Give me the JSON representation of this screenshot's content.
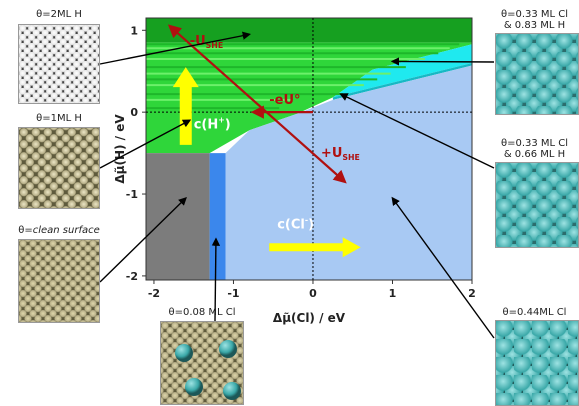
{
  "chart_data": {
    "type": "area",
    "xlabel": "Δμ̃(Cl) / eV",
    "ylabel": "Δμ̃(H) / eV",
    "xlim": [
      -2.1,
      2.0
    ],
    "ylim": [
      -2.05,
      1.15
    ],
    "xticks": [
      "-2",
      "-1",
      "0",
      "1",
      "2"
    ],
    "yticks": [
      "1",
      "0",
      "-1",
      "-2"
    ],
    "xtick_values": [
      -2,
      -1,
      0,
      1,
      2
    ],
    "ytick_values": [
      1,
      0,
      -1,
      -2
    ],
    "grid": false,
    "dashed_reference_lines": {
      "x": 0,
      "y": 0
    },
    "regions": [
      {
        "name": "θ=2ML H",
        "color": "#16a020",
        "polygon": [
          [
            -2.1,
            1.15
          ],
          [
            2.0,
            1.15
          ],
          [
            2.0,
            0.85
          ],
          [
            -2.1,
            0.85
          ]
        ]
      },
      {
        "name": "θ=1ML H",
        "color": "#2fd63a",
        "polygon": [
          [
            -2.1,
            0.85
          ],
          [
            2.0,
            0.85
          ],
          [
            2.0,
            0.83
          ],
          [
            0.75,
            0.52
          ],
          [
            0.25,
            0.18
          ],
          [
            -0.2,
            -0.02
          ],
          [
            -0.8,
            -0.22
          ],
          [
            -1.3,
            -0.5
          ],
          [
            -2.1,
            -0.5
          ]
        ]
      },
      {
        "name": "θ=0.33 ML Cl & 0.83 ML H",
        "color": "#1fe9ef",
        "polygon": [
          [
            2.0,
            0.83
          ],
          [
            2.0,
            0.6
          ],
          [
            0.25,
            0.18
          ],
          [
            0.75,
            0.52
          ]
        ]
      },
      {
        "name": "θ=0.33 ML Cl & 0.66 ML H",
        "color": "#17b9c4",
        "polygon": [
          [
            2.0,
            0.6
          ],
          [
            2.0,
            0.57
          ],
          [
            0.25,
            0.15
          ],
          [
            0.25,
            0.18
          ]
        ]
      },
      {
        "name": "θ=clean surface",
        "color": "#7c7c7c",
        "polygon": [
          [
            -2.1,
            -0.5
          ],
          [
            -1.3,
            -0.5
          ],
          [
            -1.3,
            -2.05
          ],
          [
            -2.1,
            -2.05
          ]
        ]
      },
      {
        "name": "θ=0.08 ML Cl",
        "color": "#3b87ec",
        "polygon": [
          [
            -1.3,
            -0.5
          ],
          [
            -1.1,
            -0.5
          ],
          [
            -1.1,
            -2.05
          ],
          [
            -1.3,
            -2.05
          ]
        ]
      },
      {
        "name": "θ=0.44ML Cl",
        "color": "#a8c9f3",
        "polygon": [
          [
            -1.1,
            -0.5
          ],
          [
            -0.8,
            -0.22
          ],
          [
            -0.2,
            -0.02
          ],
          [
            0.25,
            0.15
          ],
          [
            2.0,
            0.57
          ],
          [
            2.0,
            -2.05
          ],
          [
            -1.1,
            -2.05
          ]
        ]
      }
    ],
    "h_stripes_y": [
      0.83,
      0.78,
      0.72,
      0.65,
      0.55,
      0.47,
      0.4,
      0.33,
      0.22,
      0.15,
      0.05
    ],
    "arrows": [
      {
        "label": "-U_SHE",
        "color": "#b01010",
        "from": [
          0.4,
          -0.85
        ],
        "to": [
          -1.8,
          1.05
        ]
      },
      {
        "label": "+U_SHE",
        "color": "#b01010",
        "from": [
          -1.8,
          1.05
        ],
        "to": [
          0.4,
          -0.85
        ]
      },
      {
        "label": "-eU°",
        "color": "#b01010",
        "from": [
          0.0,
          0.0
        ],
        "to": [
          -0.75,
          0.0
        ]
      },
      {
        "label": "c(H⁺)",
        "color": "#ffff00",
        "from": [
          -1.6,
          -0.4
        ],
        "to": [
          -1.6,
          0.55
        ]
      },
      {
        "label": "c(Cl⁻)",
        "color": "#ffff00",
        "from": [
          -0.55,
          -1.65
        ],
        "to": [
          0.6,
          -1.65
        ]
      }
    ],
    "annotations": [
      {
        "text": "-U",
        "sub": "SHE",
        "x": -1.55,
        "y": 0.82
      },
      {
        "text": "-eU°",
        "x": -0.55,
        "y": 0.1
      },
      {
        "text": "+U",
        "sub": "SHE",
        "x": 0.1,
        "y": -0.55
      },
      {
        "text": "c(H",
        "sup": "+",
        "tail": ")",
        "x": -1.5,
        "y": -0.2
      },
      {
        "text": "c(Cl",
        "sup": "-",
        "tail": ")",
        "x": -0.45,
        "y": -1.42
      }
    ]
  },
  "labels": {
    "h2": "θ=2ML H",
    "h1": "θ=1ML H",
    "clean_prefix": "θ=",
    "clean_em": "clean surface",
    "cl008": "θ=0.08 ML Cl",
    "cl033a_line1": "θ=0.33 ML Cl",
    "cl033a_line2": "& 0.83 ML H",
    "cl033b_line1": "θ=0.33 ML Cl",
    "cl033b_line2": "& 0.66 ML H",
    "cl044": "θ=0.44ML Cl"
  },
  "colors": {
    "substrate": "#5e5a3c",
    "substrate_light": "#b8b089",
    "hydrogen": "#e8e8e8",
    "chlorine": "#3aa8a8",
    "chlorine_light": "#9ee3e3",
    "leader_line": "#000000"
  }
}
